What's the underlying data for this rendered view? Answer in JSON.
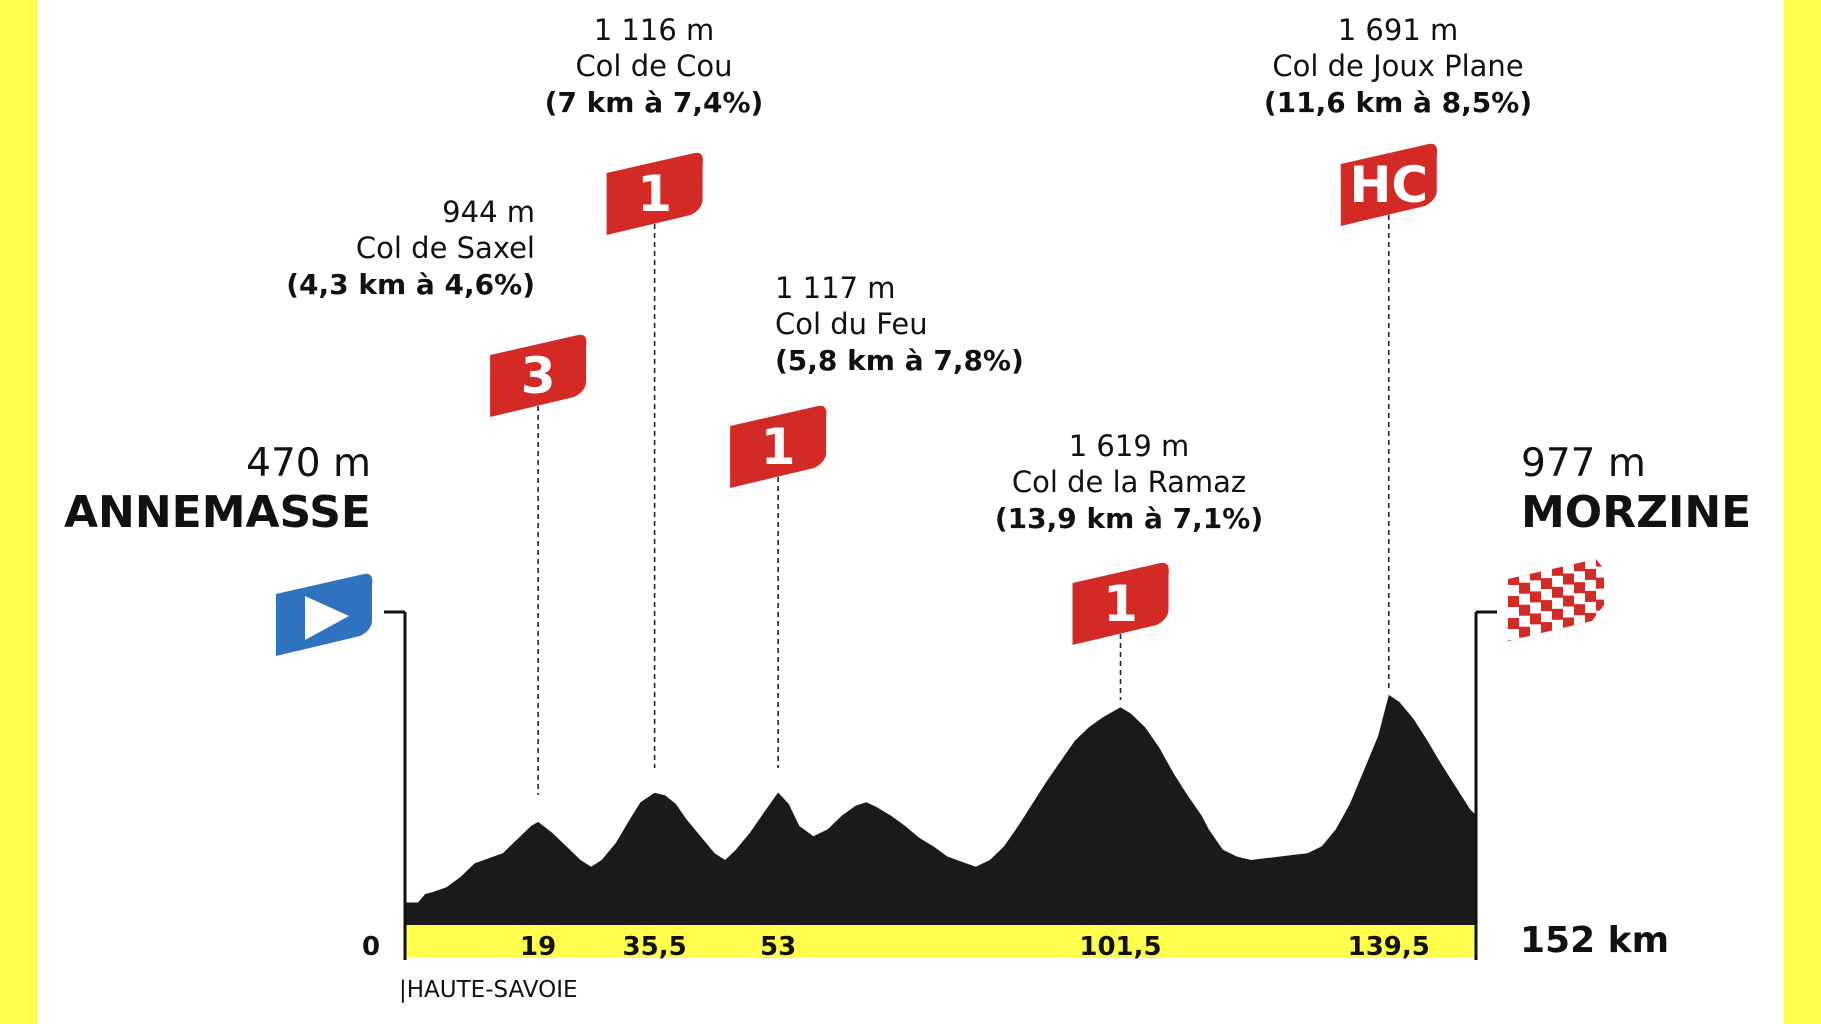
{
  "colors": {
    "frame": "#ffff4d",
    "background": "#ffffff",
    "terrain": "#1a1a1a",
    "band": "#ffff4d",
    "climb_flag": "#d42a26",
    "start_flag": "#2f72c0",
    "finish_flag": "#d42a26"
  },
  "chart_data": {
    "type": "area",
    "title": "",
    "xlabel": "",
    "ylabel": "",
    "xlim": [
      0,
      152
    ],
    "x_unit": "km",
    "ylim": [
      0,
      1700
    ],
    "y_unit": "m",
    "start": {
      "km_label": "0",
      "altitude": "470 m",
      "town": "ANNEMASSE",
      "icon": "start-flag-icon"
    },
    "finish": {
      "km_label": "152 km",
      "altitude": "977 m",
      "town": "MORZINE",
      "icon": "checkered-flag-icon"
    },
    "region": "|HAUTE-SAVOIE",
    "climbs": [
      {
        "km": 19,
        "km_label": "19",
        "altitude": "944 m",
        "name": "Col de Saxel",
        "grade": "(4,3 km à 4,6%)",
        "category": "3"
      },
      {
        "km": 35.5,
        "km_label": "35,5",
        "altitude": "1 116 m",
        "name": "Col de Cou",
        "grade": "(7 km à 7,4%)",
        "category": "1"
      },
      {
        "km": 53,
        "km_label": "53",
        "altitude": "1 117 m",
        "name": "Col du Feu",
        "grade": "(5,8 km à 7,8%)",
        "category": "1"
      },
      {
        "km": 101.5,
        "km_label": "101,5",
        "altitude": "1 619 m",
        "name": "Col de la Ramaz",
        "grade": "(13,9 km à 7,1%)",
        "category": "1"
      },
      {
        "km": 139.5,
        "km_label": "139,5",
        "altitude": "1 691 m",
        "name": "Col de Joux Plane",
        "grade": "(11,6 km à 8,5%)",
        "category": "HC"
      }
    ],
    "profile": [
      [
        0,
        470
      ],
      [
        2,
        470
      ],
      [
        3,
        520
      ],
      [
        4,
        530
      ],
      [
        6,
        560
      ],
      [
        8,
        620
      ],
      [
        10,
        700
      ],
      [
        12,
        730
      ],
      [
        14,
        760
      ],
      [
        16,
        840
      ],
      [
        18,
        920
      ],
      [
        19,
        944
      ],
      [
        21,
        880
      ],
      [
        23,
        800
      ],
      [
        25,
        720
      ],
      [
        26.5,
        680
      ],
      [
        28,
        720
      ],
      [
        30,
        820
      ],
      [
        32,
        960
      ],
      [
        33.5,
        1060
      ],
      [
        35.5,
        1116
      ],
      [
        37,
        1100
      ],
      [
        38.5,
        1050
      ],
      [
        40,
        960
      ],
      [
        42,
        860
      ],
      [
        44,
        760
      ],
      [
        45.5,
        720
      ],
      [
        47,
        780
      ],
      [
        49,
        880
      ],
      [
        51,
        1000
      ],
      [
        53,
        1117
      ],
      [
        54.5,
        1050
      ],
      [
        56,
        920
      ],
      [
        58,
        860
      ],
      [
        60,
        900
      ],
      [
        62,
        980
      ],
      [
        64,
        1040
      ],
      [
        65.5,
        1060
      ],
      [
        67,
        1030
      ],
      [
        69,
        980
      ],
      [
        71,
        920
      ],
      [
        73,
        850
      ],
      [
        75,
        800
      ],
      [
        77,
        740
      ],
      [
        79,
        710
      ],
      [
        81,
        680
      ],
      [
        83,
        720
      ],
      [
        85,
        800
      ],
      [
        87,
        920
      ],
      [
        89,
        1050
      ],
      [
        91,
        1180
      ],
      [
        93,
        1300
      ],
      [
        95,
        1420
      ],
      [
        97,
        1500
      ],
      [
        99,
        1560
      ],
      [
        101.5,
        1619
      ],
      [
        103,
        1580
      ],
      [
        105,
        1500
      ],
      [
        107,
        1380
      ],
      [
        109,
        1230
      ],
      [
        111,
        1100
      ],
      [
        113,
        980
      ],
      [
        114,
        900
      ],
      [
        115,
        840
      ],
      [
        116,
        780
      ],
      [
        118,
        740
      ],
      [
        120,
        720
      ],
      [
        122,
        730
      ],
      [
        124,
        740
      ],
      [
        126,
        750
      ],
      [
        128,
        760
      ],
      [
        130,
        800
      ],
      [
        132,
        900
      ],
      [
        134,
        1050
      ],
      [
        136,
        1250
      ],
      [
        138,
        1450
      ],
      [
        139.5,
        1691
      ],
      [
        141,
        1650
      ],
      [
        143,
        1550
      ],
      [
        145,
        1420
      ],
      [
        147,
        1280
      ],
      [
        149,
        1150
      ],
      [
        151,
        1020
      ],
      [
        152,
        977
      ]
    ]
  }
}
